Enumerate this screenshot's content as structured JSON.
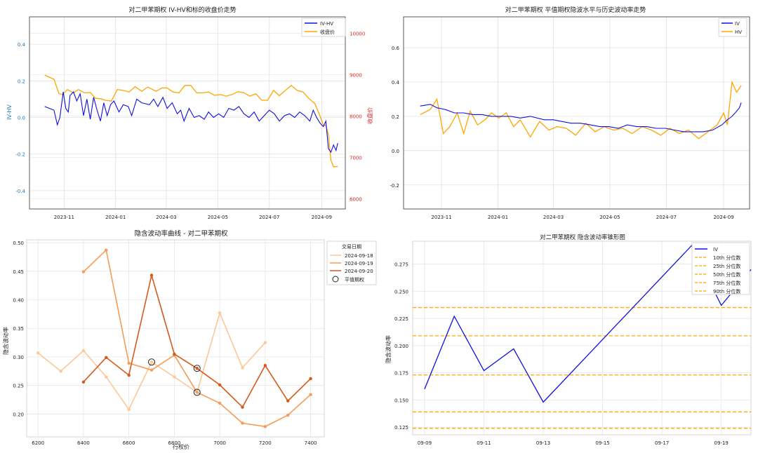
{
  "chart_data": [
    {
      "type": "line",
      "title": "对二甲苯期权 IV-HV和标的收盘价走势",
      "ylabel_left": "IV-HV",
      "ylabel_right": "收盘价",
      "yticks_left": [
        "0.4",
        "0.2",
        "0.0",
        "-0.2",
        "-0.4"
      ],
      "yticks_right": [
        "10000",
        "9000",
        "8000",
        "7000",
        "6000"
      ],
      "xticks": [
        "2023-11",
        "2024-01",
        "2024-03",
        "2024-05",
        "2024-07",
        "2024-09"
      ],
      "ylim_left": [
        -0.5,
        0.55
      ],
      "ylim_right": [
        5750,
        10400
      ],
      "legend": [
        "IV-HV",
        "收盘价"
      ],
      "legend_position": "top-right",
      "colors": {
        "left_axis": "#1f77b4",
        "right_axis": "#d62728",
        "s1": "#1010e0",
        "s2": "#ffa500"
      },
      "series": [
        {
          "name": "IV-HV",
          "x": [
            "2023-10-09",
            "2023-10-20",
            "2023-10-24",
            "2023-10-27",
            "2023-10-31",
            "2023-11-03",
            "2023-11-06",
            "2023-11-08",
            "2023-11-12",
            "2023-11-16",
            "2023-11-20",
            "2023-11-24",
            "2023-11-28",
            "2023-12-02",
            "2023-12-06",
            "2023-12-10",
            "2023-12-14",
            "2023-12-18",
            "2023-12-22",
            "2023-12-26",
            "2023-12-30",
            "2024-01-05",
            "2024-01-10",
            "2024-01-16",
            "2024-01-20",
            "2024-01-26",
            "2024-02-01",
            "2024-02-10",
            "2024-02-15",
            "2024-02-20",
            "2024-02-26",
            "2024-03-02",
            "2024-03-08",
            "2024-03-14",
            "2024-03-18",
            "2024-03-22",
            "2024-03-28",
            "2024-04-03",
            "2024-04-09",
            "2024-04-15",
            "2024-04-20",
            "2024-04-26",
            "2024-05-02",
            "2024-05-08",
            "2024-05-14",
            "2024-05-20",
            "2024-05-26",
            "2024-06-01",
            "2024-06-07",
            "2024-06-13",
            "2024-06-19",
            "2024-06-25",
            "2024-07-01",
            "2024-07-07",
            "2024-07-13",
            "2024-07-19",
            "2024-07-25",
            "2024-07-31",
            "2024-08-06",
            "2024-08-12",
            "2024-08-18",
            "2024-08-22",
            "2024-08-26",
            "2024-08-30",
            "2024-09-03",
            "2024-09-06",
            "2024-09-09",
            "2024-09-12",
            "2024-09-15",
            "2024-09-18",
            "2024-09-20"
          ],
          "values": [
            0.06,
            0.04,
            -0.04,
            0.0,
            0.14,
            0.05,
            0.03,
            0.12,
            0.14,
            0.09,
            0.13,
            0.01,
            0.1,
            -0.01,
            0.11,
            0.04,
            -0.02,
            0.08,
            0.01,
            0.07,
            0.09,
            0.03,
            0.07,
            0.06,
            0.01,
            0.1,
            0.08,
            0.07,
            0.1,
            0.06,
            0.11,
            0.05,
            0.08,
            0.02,
            0.04,
            -0.02,
            0.05,
            0.0,
            0.01,
            -0.01,
            0.03,
            0.0,
            0.02,
            0.0,
            0.05,
            0.04,
            0.06,
            0.02,
            0.0,
            0.03,
            -0.02,
            0.01,
            0.04,
            0.02,
            -0.02,
            0.01,
            0.02,
            0.0,
            0.03,
            0.01,
            -0.02,
            0.04,
            0.0,
            -0.03,
            -0.05,
            -0.02,
            -0.17,
            -0.19,
            -0.15,
            -0.18,
            -0.14
          ]
        },
        {
          "name": "收盘价",
          "x": [
            "2023-10-09",
            "2023-10-20",
            "2023-10-26",
            "2023-10-30",
            "2023-11-05",
            "2023-11-12",
            "2023-11-18",
            "2023-11-25",
            "2023-12-02",
            "2023-12-08",
            "2023-12-14",
            "2023-12-20",
            "2023-12-27",
            "2024-01-03",
            "2024-01-10",
            "2024-01-17",
            "2024-01-24",
            "2024-02-01",
            "2024-02-08",
            "2024-02-18",
            "2024-02-25",
            "2024-03-02",
            "2024-03-09",
            "2024-03-16",
            "2024-03-23",
            "2024-03-30",
            "2024-04-06",
            "2024-04-13",
            "2024-04-20",
            "2024-04-27",
            "2024-05-04",
            "2024-05-11",
            "2024-05-18",
            "2024-05-25",
            "2024-06-01",
            "2024-06-08",
            "2024-06-15",
            "2024-06-22",
            "2024-06-29",
            "2024-07-06",
            "2024-07-13",
            "2024-07-20",
            "2024-07-27",
            "2024-08-03",
            "2024-08-10",
            "2024-08-17",
            "2024-08-24",
            "2024-08-31",
            "2024-09-03",
            "2024-09-06",
            "2024-09-09",
            "2024-09-12",
            "2024-09-15",
            "2024-09-20"
          ],
          "values": [
            8990,
            8890,
            8540,
            8520,
            8640,
            8560,
            8640,
            8560,
            8570,
            8430,
            8420,
            8380,
            8360,
            8640,
            8620,
            8580,
            8710,
            8600,
            8700,
            8600,
            8680,
            8680,
            8580,
            8560,
            8740,
            8740,
            8560,
            8560,
            8580,
            8500,
            8520,
            8480,
            8520,
            8590,
            8560,
            8480,
            8540,
            8380,
            8380,
            8620,
            8490,
            8620,
            8740,
            8620,
            8580,
            8420,
            8300,
            7950,
            7780,
            7770,
            7550,
            6930,
            6770,
            6780
          ]
        }
      ]
    },
    {
      "type": "line",
      "title": "对二甲苯期权 平值期权隐波水平与历史波动率走势",
      "yticks": [
        "0.6",
        "0.4",
        "0.2",
        "0.0",
        "-0.2"
      ],
      "xticks": [
        "2023-11",
        "2024-01",
        "2024-03",
        "2024-05",
        "2024-07",
        "2024-09"
      ],
      "ylim": [
        -0.34,
        0.78
      ],
      "legend": [
        "IV",
        "HV"
      ],
      "legend_position": "top-right",
      "colors": {
        "s1": "#1010e0",
        "s2": "#ffa500"
      },
      "series": [
        {
          "name": "IV",
          "x": [
            "2023-10-09",
            "2023-10-20",
            "2023-10-27",
            "2023-11-05",
            "2023-11-15",
            "2023-11-25",
            "2023-12-05",
            "2023-12-15",
            "2023-12-25",
            "2024-01-05",
            "2024-01-15",
            "2024-01-25",
            "2024-02-05",
            "2024-02-20",
            "2024-03-01",
            "2024-03-10",
            "2024-03-20",
            "2024-03-30",
            "2024-04-10",
            "2024-04-20",
            "2024-04-30",
            "2024-05-10",
            "2024-05-20",
            "2024-05-30",
            "2024-06-10",
            "2024-06-20",
            "2024-06-30",
            "2024-07-10",
            "2024-07-20",
            "2024-07-30",
            "2024-08-10",
            "2024-08-20",
            "2024-08-30",
            "2024-09-05",
            "2024-09-10",
            "2024-09-15",
            "2024-09-18",
            "2024-09-20"
          ],
          "values": [
            0.26,
            0.27,
            0.25,
            0.24,
            0.22,
            0.22,
            0.21,
            0.21,
            0.2,
            0.2,
            0.2,
            0.19,
            0.2,
            0.18,
            0.18,
            0.17,
            0.16,
            0.16,
            0.15,
            0.14,
            0.14,
            0.13,
            0.15,
            0.14,
            0.14,
            0.13,
            0.13,
            0.12,
            0.11,
            0.11,
            0.11,
            0.12,
            0.15,
            0.18,
            0.2,
            0.23,
            0.25,
            0.28
          ]
        },
        {
          "name": "HV",
          "x": [
            "2023-10-09",
            "2023-10-20",
            "2023-10-27",
            "2023-11-03",
            "2023-11-10",
            "2023-11-18",
            "2023-11-25",
            "2023-12-02",
            "2023-12-10",
            "2023-12-18",
            "2023-12-25",
            "2024-01-02",
            "2024-01-10",
            "2024-01-18",
            "2024-01-25",
            "2024-02-05",
            "2024-02-15",
            "2024-02-25",
            "2024-03-05",
            "2024-03-15",
            "2024-03-25",
            "2024-04-05",
            "2024-04-15",
            "2024-04-25",
            "2024-05-05",
            "2024-05-15",
            "2024-05-25",
            "2024-06-05",
            "2024-06-15",
            "2024-06-25",
            "2024-07-05",
            "2024-07-15",
            "2024-07-25",
            "2024-08-05",
            "2024-08-15",
            "2024-08-25",
            "2024-09-01",
            "2024-09-05",
            "2024-09-10",
            "2024-09-15",
            "2024-09-20"
          ],
          "values": [
            0.21,
            0.24,
            0.3,
            0.1,
            0.14,
            0.22,
            0.1,
            0.23,
            0.15,
            0.18,
            0.22,
            0.19,
            0.22,
            0.14,
            0.18,
            0.08,
            0.17,
            0.12,
            0.14,
            0.13,
            0.09,
            0.16,
            0.11,
            0.14,
            0.12,
            0.13,
            0.1,
            0.14,
            0.12,
            0.09,
            0.13,
            0.1,
            0.12,
            0.07,
            0.11,
            0.15,
            0.22,
            0.15,
            0.4,
            0.34,
            0.38
          ]
        }
      ]
    },
    {
      "type": "line",
      "title": "隐含波动率曲线 - 对二甲苯期权",
      "xlabel": "行权价",
      "ylabel": "隐含波动率",
      "xticks": [
        "6200",
        "6400",
        "6600",
        "6800",
        "7000",
        "7200",
        "7400"
      ],
      "yticks": [
        "0.50",
        "0.45",
        "0.40",
        "0.35",
        "0.30",
        "0.25",
        "0.20"
      ],
      "xlim": [
        6150,
        7460
      ],
      "ylim": [
        0.16,
        0.505
      ],
      "legend_title": "交易日期",
      "legend_position": "outside right",
      "legend": [
        "2024-09-18",
        "2024-09-19",
        "2024-09-20",
        "平值期权"
      ],
      "series": [
        {
          "name": "2024-09-18",
          "color": "#fdc896",
          "x": [
            6200,
            6300,
            6400,
            6500,
            6600,
            6700,
            6800,
            6900,
            7000,
            7100,
            7200
          ],
          "values": [
            0.307,
            0.275,
            0.311,
            0.265,
            0.208,
            0.291,
            0.265,
            0.238,
            0.377,
            0.281,
            0.325
          ]
        },
        {
          "name": "2024-09-19",
          "color": "#f99a55",
          "x": [
            6400,
            6500,
            6600,
            6700,
            6800,
            6900,
            7000,
            7100,
            7200,
            7300,
            7400
          ],
          "values": [
            0.449,
            0.487,
            0.289,
            0.277,
            0.303,
            0.238,
            0.219,
            0.184,
            0.178,
            0.198,
            0.234
          ]
        },
        {
          "name": "2024-09-20",
          "color": "#d6581a",
          "x": [
            6400,
            6500,
            6600,
            6700,
            6800,
            6900,
            7000,
            7100,
            7200,
            7300,
            7400
          ],
          "values": [
            0.256,
            0.299,
            0.268,
            0.443,
            0.305,
            0.28,
            0.251,
            0.212,
            0.285,
            0.223,
            0.262
          ]
        }
      ],
      "atm_points": [
        {
          "x": 6700,
          "y": 0.291
        },
        {
          "x": 6900,
          "y": 0.28
        },
        {
          "x": 6900,
          "y": 0.238
        }
      ]
    },
    {
      "type": "line",
      "title": "对二甲苯期权 隐含波动率锥形图",
      "ylabel": "隐含波动率",
      "xticks": [
        "09-09",
        "09-11",
        "09-13",
        "09-15",
        "09-17",
        "09-19"
      ],
      "yticks": [
        "0.275",
        "0.250",
        "0.225",
        "0.200",
        "0.175",
        "0.150",
        "0.125"
      ],
      "xlim": [
        -0.4,
        11.0
      ],
      "ylim": [
        0.118,
        0.296
      ],
      "legend": [
        "IV",
        "10th 分位数",
        "25th 分位数",
        "50th 分位数",
        "75th 分位数",
        "90th 分位数"
      ],
      "legend_position": "top-right",
      "colors": {
        "iv": "#1010e0",
        "pct": "#ffa500"
      },
      "series": [
        {
          "name": "IV",
          "x": [
            0,
            1,
            2,
            3,
            4,
            9,
            10,
            11
          ],
          "values": [
            0.16,
            0.227,
            0.177,
            0.197,
            0.148,
            0.292,
            0.237,
            0.27
          ]
        }
      ],
      "percentiles": [
        {
          "name": "10th 分位数",
          "value": 0.124
        },
        {
          "name": "25th 分位数",
          "value": 0.139
        },
        {
          "name": "50th 分位数",
          "value": 0.173
        },
        {
          "name": "75th 分位数",
          "value": 0.209
        },
        {
          "name": "90th 分位数",
          "value": 0.235
        }
      ]
    }
  ]
}
